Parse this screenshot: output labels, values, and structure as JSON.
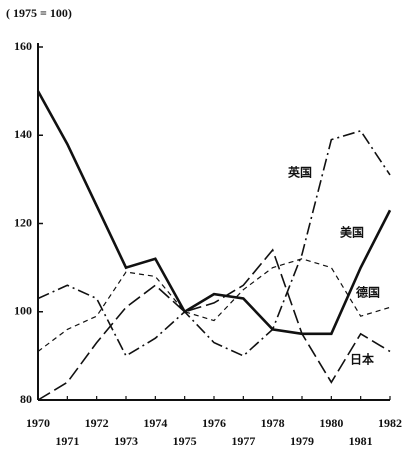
{
  "chart_data": {
    "type": "line",
    "subtitle": "( 1975 = 100)",
    "x": [
      1970,
      1971,
      1972,
      1973,
      1974,
      1975,
      1976,
      1977,
      1978,
      1979,
      1980,
      1981,
      1982
    ],
    "xlim": [
      1970,
      1982
    ],
    "xticks": [
      1970,
      1971,
      1972,
      1973,
      1974,
      1975,
      1976,
      1977,
      1978,
      1979,
      1980,
      1981,
      1982
    ],
    "ylim": [
      80,
      160
    ],
    "yticks": [
      80,
      100,
      120,
      140,
      160
    ],
    "series": [
      {
        "name": "美国",
        "color": "#111111",
        "dash": "solid",
        "values": [
          150,
          138,
          124,
          110,
          112,
          100,
          104,
          103,
          96,
          95,
          95,
          110,
          123
        ]
      },
      {
        "name": "英国",
        "color": "#111111",
        "dash": "dashdot",
        "values": [
          103,
          106,
          103,
          90,
          94,
          100,
          93,
          90,
          96,
          113,
          139,
          141,
          131
        ]
      },
      {
        "name": "德国",
        "color": "#111111",
        "dash": "shortdash",
        "values": [
          91,
          96,
          99,
          109,
          108,
          100,
          98,
          105,
          110,
          112,
          110,
          99,
          101
        ]
      },
      {
        "name": "日本",
        "color": "#111111",
        "dash": "longdash",
        "values": [
          80,
          84,
          93,
          101,
          106,
          100,
          102,
          106,
          114,
          95,
          84,
          95,
          91
        ]
      }
    ]
  }
}
